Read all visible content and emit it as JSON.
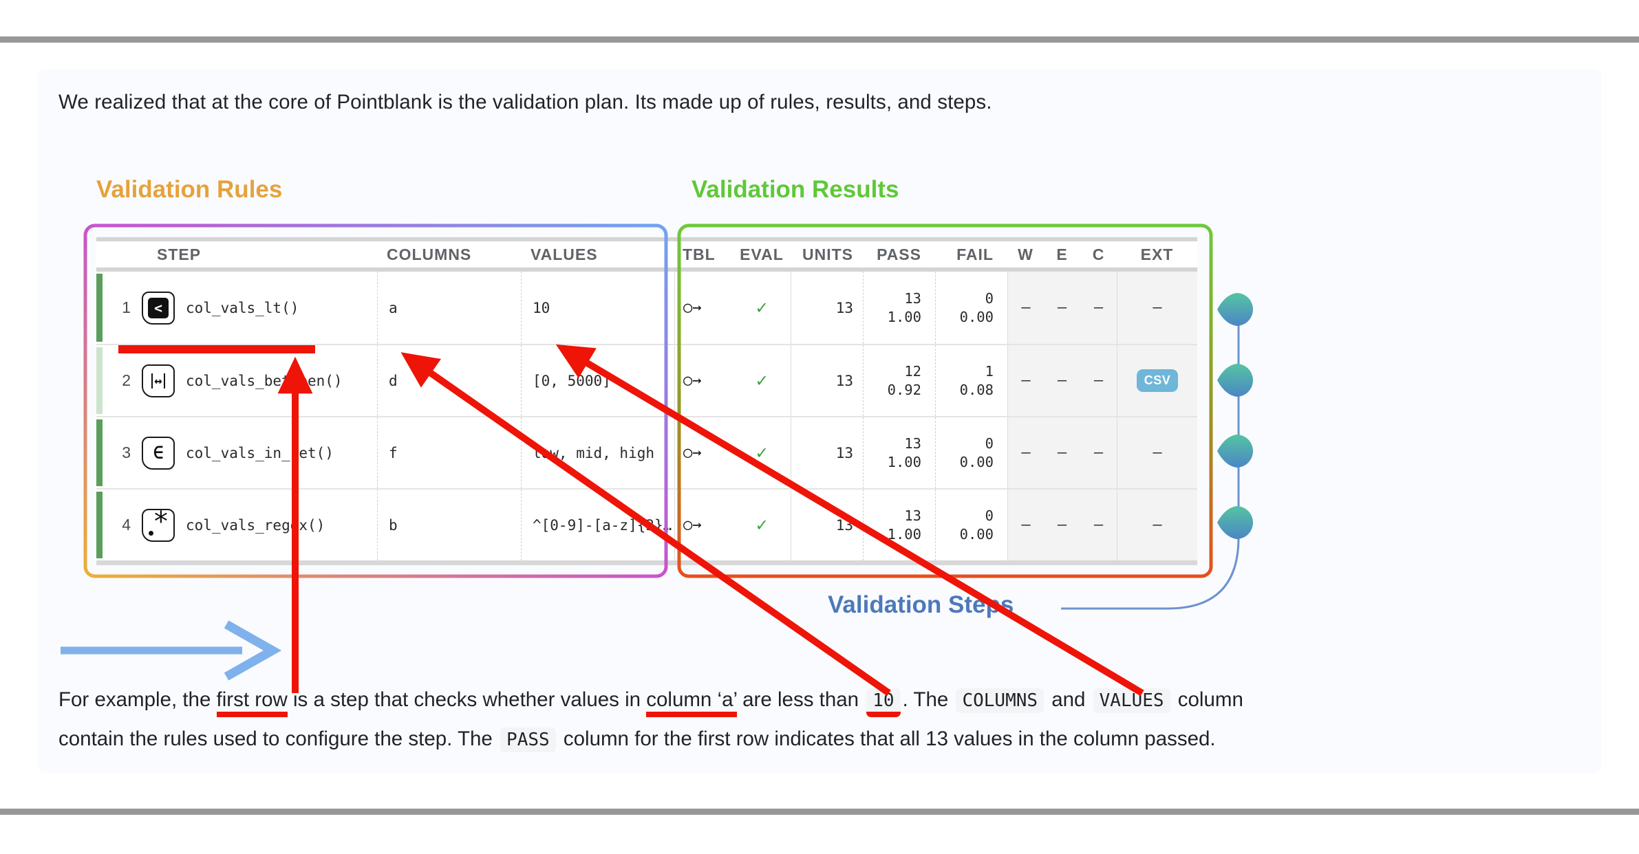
{
  "intro": "We realized that at the core of Pointblank is the validation plan. Its made up of rules, results, and steps.",
  "headings": {
    "rules": "Validation Rules",
    "results": "Validation Results",
    "steps": "Validation Steps"
  },
  "table": {
    "headers": [
      "STEP",
      "COLUMNS",
      "VALUES",
      "TBL",
      "EVAL",
      "UNITS",
      "PASS",
      "FAIL",
      "W",
      "E",
      "C",
      "EXT"
    ],
    "rows": [
      {
        "step": "1",
        "icon": "less-than",
        "fn": "col_vals_lt()",
        "columns": "a",
        "values": "10",
        "tbl": "○→",
        "eval": "✓",
        "units": "13",
        "pass": [
          "13",
          "1.00"
        ],
        "fail": [
          "0",
          "0.00"
        ],
        "w": "—",
        "e": "—",
        "c": "—",
        "ext": "—",
        "ext_chip": false,
        "all_passed": true
      },
      {
        "step": "2",
        "icon": "between",
        "fn": "col_vals_between()",
        "columns": "d",
        "values": "[0, 5000]",
        "tbl": "○→",
        "eval": "✓",
        "units": "13",
        "pass": [
          "12",
          "0.92"
        ],
        "fail": [
          "1",
          "0.08"
        ],
        "w": "—",
        "e": "—",
        "c": "—",
        "ext": "CSV",
        "ext_chip": true,
        "all_passed": false
      },
      {
        "step": "3",
        "icon": "in-set",
        "fn": "col_vals_in_set()",
        "columns": "f",
        "values": "low, mid, high",
        "tbl": "○→",
        "eval": "✓",
        "units": "13",
        "pass": [
          "13",
          "1.00"
        ],
        "fail": [
          "0",
          "0.00"
        ],
        "w": "—",
        "e": "—",
        "c": "—",
        "ext": "—",
        "ext_chip": false,
        "all_passed": true
      },
      {
        "step": "4",
        "icon": "regex",
        "fn": "col_vals_regex()",
        "columns": "b",
        "values": "^[0-9]-[a-z]{3}…",
        "tbl": "○→",
        "eval": "✓",
        "units": "13",
        "pass": [
          "13",
          "1.00"
        ],
        "fail": [
          "0",
          "0.00"
        ],
        "w": "—",
        "e": "—",
        "c": "—",
        "ext": "—",
        "ext_chip": false,
        "all_passed": true
      }
    ]
  },
  "explanation": {
    "lines": [
      [
        {
          "text": "For example, the ",
          "style": "plain"
        },
        {
          "text": "first row",
          "style": "underline-red"
        },
        {
          "text": " is a step that checks whether values in ",
          "style": "plain"
        },
        {
          "text": "column ‘a’",
          "style": "underline-red"
        },
        {
          "text": " are less than ",
          "style": "plain"
        },
        {
          "text": "10",
          "style": "code underline-red"
        },
        {
          "text": ". The ",
          "style": "plain"
        },
        {
          "text": "COLUMNS",
          "style": "code"
        },
        {
          "text": " and ",
          "style": "plain"
        },
        {
          "text": "VALUES",
          "style": "code"
        },
        {
          "text": " column",
          "style": "plain"
        }
      ],
      [
        {
          "text": "contain the rules used to configure the step. The ",
          "style": "plain"
        },
        {
          "text": "PASS",
          "style": "code"
        },
        {
          "text": " column for the first row indicates that all 13 values in the column passed.",
          "style": "plain"
        }
      ]
    ]
  },
  "colors": {
    "red": "#EE1408",
    "blue_arrow": "#7FB2EC",
    "rules_heading": "#E5A23C",
    "results_heading": "#5FC838",
    "steps_heading": "#4C79BA",
    "timeline_line": "#6B93CE",
    "green_check": "#3FA13F",
    "strip_full": "#5B9E5B",
    "strip_partial": "#CDE4CC",
    "csv_bg": "#6FB6D8",
    "grad_rules_start": "#EDAF35",
    "grad_rules_mid": "#C853CC",
    "grad_rules_end": "#6FA3F2",
    "grad_results_start": "#6DC93C",
    "grad_results_mid": "#9A9422",
    "grad_results_end": "#E84E1B",
    "node_top": "#55C4A2",
    "node_bottom": "#4B86C5"
  }
}
